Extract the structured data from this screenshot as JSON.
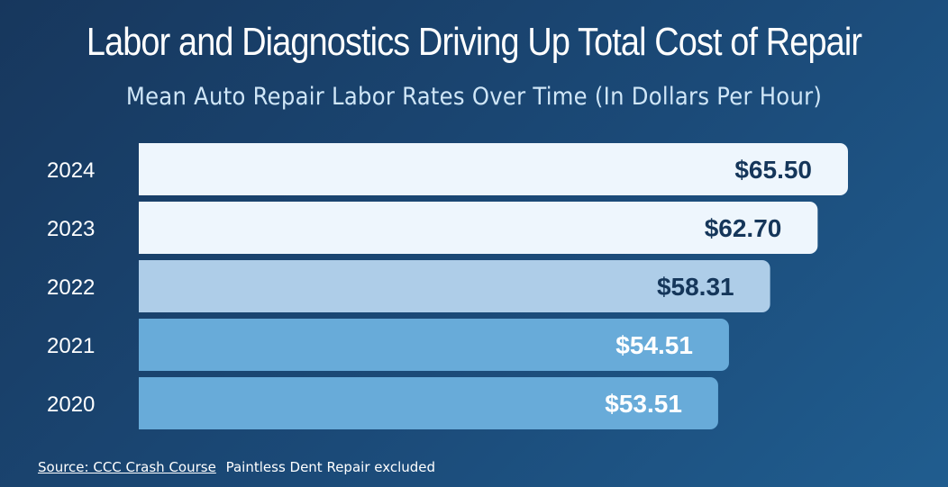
{
  "title": "Labor and Diagnostics Driving Up Total Cost of Repair",
  "subtitle": "Mean Auto Repair Labor Rates Over Time (In Dollars Per Hour)",
  "footer": {
    "source": "Source: CCC Crash Course",
    "note": "Paintless Dent Repair excluded"
  },
  "chart_data": {
    "type": "bar",
    "orientation": "horizontal",
    "categories": [
      "2024",
      "2023",
      "2022",
      "2021",
      "2020"
    ],
    "values": [
      65.5,
      62.7,
      58.31,
      54.51,
      53.51
    ],
    "value_labels": [
      "$65.50",
      "$62.70",
      "$58.31",
      "$54.51",
      "$53.51"
    ],
    "bar_colors": [
      "#eef6fd",
      "#eef6fd",
      "#aecde8",
      "#68abd9",
      "#68abd9"
    ],
    "label_colors": [
      "#15365a",
      "#15365a",
      "#15365a",
      "#ffffff",
      "#ffffff"
    ],
    "title": "Mean Auto Repair Labor Rates Over Time (In Dollars Per Hour)",
    "xlabel": "",
    "ylabel": "",
    "xlim": [
      0,
      65.5
    ],
    "grid": false,
    "legend": "none"
  }
}
